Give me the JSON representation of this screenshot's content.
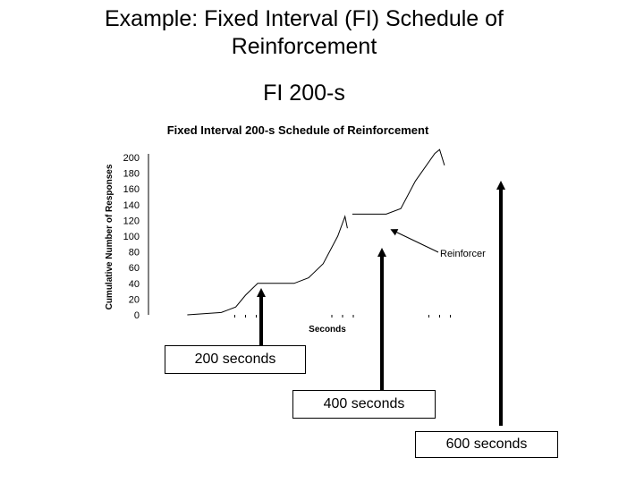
{
  "slide": {
    "title": "Example:  Fixed Interval (FI) Schedule of Reinforcement",
    "subtitle": "FI 200-s"
  },
  "callouts": [
    "200 seconds",
    "400 seconds",
    "600 seconds"
  ],
  "chart_data": {
    "type": "line",
    "title": "Fixed Interval 200-s Schedule of Reinforcement",
    "xlabel": "Seconds",
    "ylabel": "Cumulative Number of Responses",
    "ylim": [
      0,
      200
    ],
    "yticks": [
      0,
      20,
      40,
      60,
      80,
      100,
      120,
      140,
      160,
      180,
      200
    ],
    "xlim": [
      0,
      800
    ],
    "grid": false,
    "series": [
      {
        "name": "cumulative responses",
        "x": [
          80,
          150,
          180,
          200,
          225,
          300,
          330,
          360,
          390,
          405,
          410
        ],
        "y": [
          0,
          3,
          10,
          25,
          40,
          40,
          47,
          65,
          100,
          125,
          110
        ]
      },
      {
        "name": "cumulative responses",
        "x": [
          420,
          490,
          520,
          550,
          590,
          600,
          610
        ],
        "y": [
          128,
          128,
          135,
          170,
          205,
          210,
          190
        ]
      }
    ],
    "reinforcer_marks_x": [
      200,
      400,
      600
    ],
    "annotations": [
      {
        "text": "Reinforcer",
        "points_to_x": 400
      }
    ]
  }
}
